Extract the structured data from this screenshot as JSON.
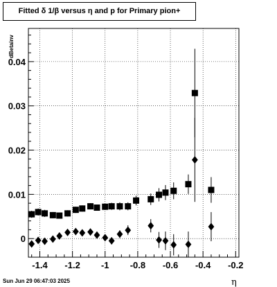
{
  "chart_data": {
    "type": "scatter",
    "title": "Fitted δ 1/β versus η and p for Primary pion+",
    "xlabel": "η",
    "ylabel": "dBetainv",
    "xlim": [
      -1.47,
      -0.18
    ],
    "ylim": [
      -0.0042,
      0.0475
    ],
    "x_ticks": [
      -1.4,
      -1.2,
      -1.0,
      -0.8,
      -0.6,
      -0.4,
      -0.2
    ],
    "x_tick_labels": [
      "-1.4",
      "-1.2",
      "-1",
      "-0.8",
      "-0.6",
      "-0.4",
      "-0.2"
    ],
    "y_ticks": [
      0,
      0.01,
      0.02,
      0.03,
      0.04
    ],
    "y_tick_labels": [
      "0",
      "0.01",
      "0.02",
      "0.03",
      "0.04"
    ],
    "grid": true,
    "series": [
      {
        "marker": "square",
        "points": [
          {
            "x": -1.45,
            "y": 0.0055,
            "err": 0.0008
          },
          {
            "x": -1.41,
            "y": 0.006,
            "err": 0.0008
          },
          {
            "x": -1.37,
            "y": 0.0057,
            "err": 0.0008
          },
          {
            "x": -1.32,
            "y": 0.0053,
            "err": 0.0007
          },
          {
            "x": -1.28,
            "y": 0.0052,
            "err": 0.0007
          },
          {
            "x": -1.23,
            "y": 0.0057,
            "err": 0.0007
          },
          {
            "x": -1.18,
            "y": 0.0065,
            "err": 0.0007
          },
          {
            "x": -1.14,
            "y": 0.0068,
            "err": 0.0007
          },
          {
            "x": -1.09,
            "y": 0.0073,
            "err": 0.0007
          },
          {
            "x": -1.05,
            "y": 0.007,
            "err": 0.0007
          },
          {
            "x": -1.0,
            "y": 0.0072,
            "err": 0.0007
          },
          {
            "x": -0.96,
            "y": 0.0073,
            "err": 0.0008
          },
          {
            "x": -0.91,
            "y": 0.0073,
            "err": 0.0009
          },
          {
            "x": -0.86,
            "y": 0.0073,
            "err": 0.0009
          },
          {
            "x": -0.81,
            "y": 0.0086,
            "err": 0.0011
          },
          {
            "x": -0.72,
            "y": 0.0089,
            "err": 0.0013
          },
          {
            "x": -0.67,
            "y": 0.0099,
            "err": 0.0015
          },
          {
            "x": -0.63,
            "y": 0.0104,
            "err": 0.0017
          },
          {
            "x": -0.58,
            "y": 0.0108,
            "err": 0.0019
          },
          {
            "x": -0.49,
            "y": 0.0123,
            "err": 0.0022
          },
          {
            "x": -0.45,
            "y": 0.0329,
            "err": 0.01
          },
          {
            "x": -0.35,
            "y": 0.011,
            "err": 0.0029
          }
        ]
      },
      {
        "marker": "diamond",
        "points": [
          {
            "x": -1.45,
            "y": -0.0012,
            "err": 0.0006
          },
          {
            "x": -1.41,
            "y": -0.0004,
            "err": 0.0006
          },
          {
            "x": -1.37,
            "y": -0.0006,
            "err": 0.0006
          },
          {
            "x": -1.32,
            "y": -0.0001,
            "err": 0.0006
          },
          {
            "x": -1.28,
            "y": 0.0006,
            "err": 0.0006
          },
          {
            "x": -1.23,
            "y": 0.0014,
            "err": 0.0006
          },
          {
            "x": -1.18,
            "y": 0.0016,
            "err": 0.0006
          },
          {
            "x": -1.14,
            "y": 0.0013,
            "err": 0.0006
          },
          {
            "x": -1.09,
            "y": 0.0015,
            "err": 0.0006
          },
          {
            "x": -1.05,
            "y": 0.0008,
            "err": 0.0006
          },
          {
            "x": -1.0,
            "y": 0.0002,
            "err": 0.0007
          },
          {
            "x": -0.96,
            "y": -0.0005,
            "err": 0.0008
          },
          {
            "x": -0.91,
            "y": 0.001,
            "err": 0.0009
          },
          {
            "x": -0.86,
            "y": 0.0019,
            "err": 0.0011
          },
          {
            "x": -0.72,
            "y": 0.0029,
            "err": 0.0015
          },
          {
            "x": -0.67,
            "y": -0.0003,
            "err": 0.0018
          },
          {
            "x": -0.63,
            "y": -0.0005,
            "err": 0.0021
          },
          {
            "x": -0.58,
            "y": -0.0014,
            "err": 0.0024
          },
          {
            "x": -0.49,
            "y": -0.0013,
            "err": 0.0029
          },
          {
            "x": -0.45,
            "y": 0.0178,
            "err": 0.0095
          },
          {
            "x": -0.35,
            "y": 0.0027,
            "err": 0.0033
          }
        ]
      }
    ]
  },
  "footer": {
    "date": "Sun Jun 29 06:47:03 2025"
  }
}
